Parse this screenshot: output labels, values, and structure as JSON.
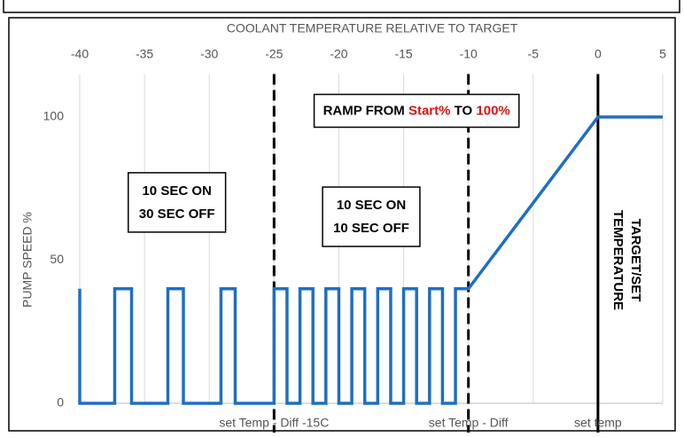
{
  "chart_data": {
    "type": "line",
    "xlabel": "COOLANT TEMPERATURE  RELATIVE TO TARGET",
    "ylabel": "PUMP SPEED %",
    "x": [
      -40,
      -40,
      -37.3,
      -37.3,
      -36,
      -36,
      -33.2,
      -33.2,
      -32,
      -32,
      -29.1,
      -29.1,
      -28,
      -28,
      -25,
      -25,
      -24,
      -24,
      -23,
      -23,
      -22,
      -22,
      -21,
      -21,
      -20,
      -20,
      -19,
      -19,
      -18,
      -18,
      -17,
      -17,
      -16,
      -16,
      -15,
      -15,
      -14,
      -14,
      -13,
      -13,
      -12,
      -12,
      -11,
      -11,
      -10,
      0,
      5
    ],
    "series": [
      {
        "color": "#1f6fbf",
        "values": [
          40,
          0,
          0,
          40,
          40,
          0,
          0,
          40,
          40,
          0,
          0,
          40,
          40,
          0,
          0,
          40,
          40,
          0,
          0,
          40,
          40,
          0,
          0,
          40,
          40,
          0,
          0,
          40,
          40,
          0,
          0,
          40,
          40,
          0,
          0,
          40,
          40,
          0,
          0,
          40,
          40,
          0,
          0,
          40,
          40,
          100,
          100
        ]
      }
    ],
    "xlim": [
      -40,
      5
    ],
    "xticks": [
      -40,
      -35,
      -30,
      -25,
      -20,
      -15,
      -10,
      -5,
      0,
      5
    ],
    "ylim": [
      0,
      115
    ],
    "yticks": [
      0,
      50,
      100
    ],
    "grid": "x",
    "vlines": [
      {
        "x": -25,
        "style": "dashed"
      },
      {
        "x": -10,
        "style": "dashed"
      },
      {
        "x": 0,
        "style": "solid"
      }
    ],
    "bottom_labels": [
      {
        "x": -25,
        "text": "set Temp - Diff -15C"
      },
      {
        "x": -10,
        "text": "set Temp - Diff"
      },
      {
        "x": 0,
        "text": "set temp"
      }
    ],
    "annotations": [
      {
        "x": -32.5,
        "y": 70,
        "lines": [
          "10 SEC ON",
          "30 SEC OFF"
        ]
      },
      {
        "x": -17.5,
        "y": 65,
        "lines": [
          "10 SEC ON",
          "10 SEC OFF"
        ]
      }
    ],
    "ramp_label": {
      "x": -14,
      "y": 102,
      "parts": [
        {
          "text": "RAMP FROM ",
          "color": "#000000"
        },
        {
          "text": "Start%",
          "color": "#e01010"
        },
        {
          "text": " TO ",
          "color": "#000000"
        },
        {
          "text": "100%",
          "color": "#e01010"
        }
      ]
    },
    "vertical_label": {
      "x": 2.2,
      "y": 50,
      "lines": [
        "TARGET/SET",
        "TEMPERATURE"
      ]
    }
  }
}
